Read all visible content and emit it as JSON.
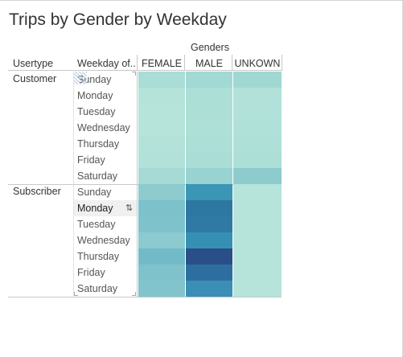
{
  "chart_data": {
    "type": "heatmap",
    "title": "Trips by Gender by Weekday",
    "column_group_label": "Genders",
    "row_headers": [
      "Usertype",
      "Weekday of.."
    ],
    "columns": [
      "FEMALE",
      "MALE",
      "UNKOWN"
    ],
    "weekdays": [
      "Sunday",
      "Monday",
      "Tuesday",
      "Wednesday",
      "Thursday",
      "Friday",
      "Saturday"
    ],
    "groups": [
      {
        "name": "Customer",
        "cells": [
          [
            "#a9ddd5",
            "#a3d9d4",
            "#a0d7d3"
          ],
          [
            "#b5e3d9",
            "#acdfd6",
            "#b1e1d8"
          ],
          [
            "#b6e3da",
            "#addfd7",
            "#b1e1d8"
          ],
          [
            "#b6e3da",
            "#afe0d7",
            "#b0e1d8"
          ],
          [
            "#b4e2d9",
            "#acdfd6",
            "#afe0d7"
          ],
          [
            "#b1e1d8",
            "#a9ddd5",
            "#acdfd6"
          ],
          [
            "#a6dad4",
            "#99d3d1",
            "#8ecbcd"
          ]
        ]
      },
      {
        "name": "Subscriber",
        "cells": [
          [
            "#8ecbcf",
            "#3b95b5",
            "#b6e3da"
          ],
          [
            "#7dc1cb",
            "#2d77a3",
            "#b6e3da"
          ],
          [
            "#7fc2cc",
            "#2f79a4",
            "#b6e3da"
          ],
          [
            "#8ccacf",
            "#3690b3",
            "#b6e3da"
          ],
          [
            "#73bac8",
            "#2a4e88",
            "#b6e3da"
          ],
          [
            "#7fc2cc",
            "#2d6ea0",
            "#b6e3da"
          ],
          [
            "#82c3cc",
            "#3b8fb4",
            "#b6e3da"
          ]
        ]
      }
    ],
    "selected": {
      "group": "Subscriber",
      "weekday": "Monday"
    }
  }
}
